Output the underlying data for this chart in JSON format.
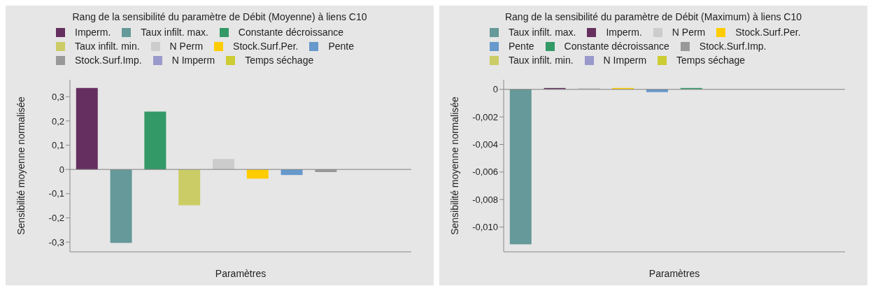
{
  "chart_data": [
    {
      "type": "bar",
      "title": "Rang de la sensibilité du paramètre de Débit (Moyenne) à liens C10",
      "xlabel": "Paramètres",
      "ylabel": "Sensibilité moyenne normalisée",
      "categories": [
        null,
        null,
        null,
        null,
        null,
        null,
        null,
        null,
        null,
        null
      ],
      "stacked": true,
      "legend": "top",
      "tick_labels": "y",
      "ylim": [
        -0.34,
        0.37
      ],
      "yticks": [
        {
          "value": -0.3,
          "label": "-0,3"
        },
        {
          "value": -0.2,
          "label": "-0,2"
        },
        {
          "value": -0.1,
          "label": "-0,1"
        },
        {
          "value": 0,
          "label": "0"
        },
        {
          "value": 0.1,
          "label": "0,1"
        },
        {
          "value": 0.2,
          "label": "0,2"
        },
        {
          "value": 0.3,
          "label": "0,3"
        }
      ],
      "ref_lines": [
        {
          "axis": "y",
          "value": 0,
          "color": "#808080"
        }
      ],
      "series": [
        {
          "name": "Imperm.",
          "color": "#65305f",
          "values": [
            0.336,
            null,
            null,
            null,
            null,
            null,
            null,
            null,
            null,
            null
          ]
        },
        {
          "name": "Taux infilt. max.",
          "color": "#669999",
          "values": [
            null,
            -0.303,
            null,
            null,
            null,
            null,
            null,
            null,
            null,
            null
          ]
        },
        {
          "name": "Constante décroissance",
          "color": "#339966",
          "values": [
            null,
            null,
            0.239,
            null,
            null,
            null,
            null,
            null,
            null,
            null
          ]
        },
        {
          "name": "Taux infilt. min.",
          "color": "#cccc66",
          "values": [
            null,
            null,
            null,
            -0.148,
            null,
            null,
            null,
            null,
            null,
            null
          ]
        },
        {
          "name": "N Perm",
          "color": "#cccccc",
          "values": [
            null,
            null,
            null,
            null,
            0.043,
            null,
            null,
            null,
            null,
            null
          ]
        },
        {
          "name": "Stock.Surf.Per.",
          "color": "#ffcc00",
          "values": [
            null,
            null,
            null,
            null,
            null,
            -0.038,
            null,
            null,
            null,
            null
          ]
        },
        {
          "name": "Pente",
          "color": "#6699cc",
          "values": [
            null,
            null,
            null,
            null,
            null,
            null,
            -0.023,
            null,
            null,
            null
          ]
        },
        {
          "name": "Stock.Surf.Imp.",
          "color": "#999999",
          "values": [
            null,
            null,
            null,
            null,
            null,
            null,
            null,
            -0.011,
            null,
            null
          ]
        },
        {
          "name": "N Imperm",
          "color": "#9999cc",
          "values": [
            null,
            null,
            null,
            null,
            null,
            null,
            null,
            null,
            0,
            null
          ]
        },
        {
          "name": "Temps séchage",
          "color": "#cccc33",
          "values": [
            null,
            null,
            null,
            null,
            null,
            null,
            null,
            null,
            null,
            0
          ]
        }
      ]
    },
    {
      "type": "bar",
      "title": "Rang de la sensibilité du paramètre de Débit (Maximum) à liens C10",
      "xlabel": "Paramètres",
      "ylabel": "Sensibilité moyenne normalisée",
      "categories": [
        null,
        null,
        null,
        null,
        null,
        null,
        null,
        null,
        null,
        null
      ],
      "stacked": true,
      "legend": "top",
      "tick_labels": "y",
      "ylim": [
        -0.0118,
        0.0007
      ],
      "yticks": [
        {
          "value": -0.01,
          "label": "-0,010"
        },
        {
          "value": -0.008,
          "label": "-0,008"
        },
        {
          "value": -0.006,
          "label": "-0,006"
        },
        {
          "value": -0.004,
          "label": "-0,004"
        },
        {
          "value": -0.002,
          "label": "-0,002"
        },
        {
          "value": 0,
          "label": "0"
        }
      ],
      "ref_lines": [
        {
          "axis": "y",
          "value": 0,
          "color": "#808080"
        }
      ],
      "series": [
        {
          "name": "Taux infilt. max.",
          "color": "#669999",
          "values": [
            -0.01125,
            null,
            null,
            null,
            null,
            null,
            null,
            null,
            null,
            null
          ]
        },
        {
          "name": "Imperm.",
          "color": "#65305f",
          "values": [
            null,
            0.0001,
            null,
            null,
            null,
            null,
            null,
            null,
            null,
            null
          ]
        },
        {
          "name": "N Perm",
          "color": "#cccccc",
          "values": [
            null,
            null,
            0.0001,
            null,
            null,
            null,
            null,
            null,
            null,
            null
          ]
        },
        {
          "name": "Stock.Surf.Per.",
          "color": "#ffcc00",
          "values": [
            null,
            null,
            null,
            0.0001,
            null,
            null,
            null,
            null,
            null,
            null
          ]
        },
        {
          "name": "Pente",
          "color": "#6699cc",
          "values": [
            null,
            null,
            null,
            null,
            -0.0002,
            null,
            null,
            null,
            null,
            null
          ]
        },
        {
          "name": "Constante décroissance",
          "color": "#339966",
          "values": [
            null,
            null,
            null,
            null,
            null,
            0.0001,
            null,
            null,
            null,
            null
          ]
        },
        {
          "name": "Stock.Surf.Imp.",
          "color": "#999999",
          "values": [
            null,
            null,
            null,
            null,
            null,
            null,
            0,
            null,
            null,
            null
          ]
        },
        {
          "name": "Taux infilt. min.",
          "color": "#cccc66",
          "values": [
            null,
            null,
            null,
            null,
            null,
            null,
            null,
            0,
            null,
            null
          ]
        },
        {
          "name": "N Imperm",
          "color": "#9999cc",
          "values": [
            null,
            null,
            null,
            null,
            null,
            null,
            null,
            null,
            0,
            null
          ]
        },
        {
          "name": "Temps séchage",
          "color": "#cccc33",
          "values": [
            null,
            null,
            null,
            null,
            null,
            null,
            null,
            null,
            null,
            0
          ]
        }
      ]
    }
  ]
}
